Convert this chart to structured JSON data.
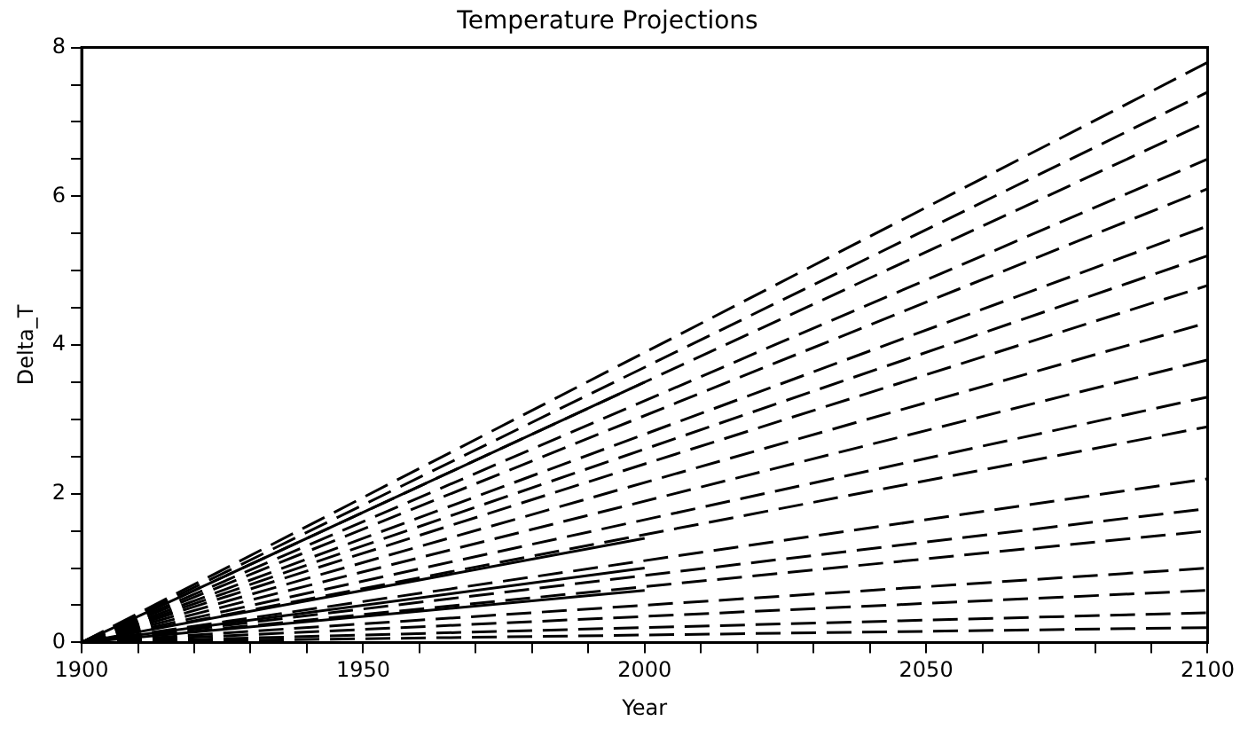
{
  "chart_data": {
    "type": "line",
    "title": "Temperature Projections",
    "xlabel": "Year",
    "ylabel": "Delta_T",
    "xlim": [
      1900,
      2100
    ],
    "ylim": [
      0,
      8
    ],
    "xticks": [
      1900,
      {
        "value": 1910,
        "label": null
      },
      {
        "value": 1920,
        "label": null
      },
      {
        "value": 1930,
        "label": null
      },
      {
        "value": 1940,
        "label": null
      },
      1950,
      {
        "value": 1960,
        "label": null
      },
      {
        "value": 1970,
        "label": null
      },
      {
        "value": 1980,
        "label": null
      },
      {
        "value": 1990,
        "label": null
      },
      2000,
      {
        "value": 2010,
        "label": null
      },
      {
        "value": 2020,
        "label": null
      },
      {
        "value": 2030,
        "label": null
      },
      {
        "value": 2040,
        "label": null
      },
      2050,
      {
        "value": 2060,
        "label": null
      },
      {
        "value": 2070,
        "label": null
      },
      {
        "value": 2080,
        "label": null
      },
      {
        "value": 2090,
        "label": null
      },
      2100
    ],
    "yticks": [
      0,
      {
        "value": 0.5,
        "label": null
      },
      {
        "value": 1,
        "label": null
      },
      {
        "value": 1.5,
        "label": null
      },
      2,
      {
        "value": 2.5,
        "label": null
      },
      {
        "value": 3,
        "label": null
      },
      {
        "value": 3.5,
        "label": null
      },
      4,
      {
        "value": 4.5,
        "label": null
      },
      {
        "value": 5,
        "label": null
      },
      {
        "value": 5.5,
        "label": null
      },
      6,
      {
        "value": 6.5,
        "label": null
      },
      {
        "value": 7,
        "label": null
      },
      {
        "value": 7.5,
        "label": null
      },
      8
    ],
    "grid": false,
    "legend": false,
    "marker": "none",
    "series": [
      {
        "color": "#000000",
        "x": [
          1900,
          2100
        ],
        "values": [
          0,
          7.8
        ],
        "line_style": "dashed"
      },
      {
        "color": "#000000",
        "x": [
          1900,
          2100
        ],
        "values": [
          0,
          7.4
        ],
        "line_style": "dashed"
      },
      {
        "color": "#000000",
        "x": [
          1900,
          2100
        ],
        "values": [
          0,
          7.0
        ],
        "line_style": "dashed"
      },
      {
        "color": "#000000",
        "x": [
          1900,
          2100
        ],
        "values": [
          0,
          6.5
        ],
        "line_style": "dashed"
      },
      {
        "color": "#000000",
        "x": [
          1900,
          2100
        ],
        "values": [
          0,
          6.1
        ],
        "line_style": "dashed"
      },
      {
        "color": "#000000",
        "x": [
          1900,
          2100
        ],
        "values": [
          0,
          5.6
        ],
        "line_style": "dashed"
      },
      {
        "color": "#000000",
        "x": [
          1900,
          2100
        ],
        "values": [
          0,
          5.2
        ],
        "line_style": "dashed"
      },
      {
        "color": "#000000",
        "x": [
          1900,
          2100
        ],
        "values": [
          0,
          4.8
        ],
        "line_style": "dashed"
      },
      {
        "color": "#000000",
        "x": [
          1900,
          2100
        ],
        "values": [
          0,
          4.3
        ],
        "line_style": "dashed"
      },
      {
        "color": "#000000",
        "x": [
          1900,
          2100
        ],
        "values": [
          0,
          3.8
        ],
        "line_style": "dashed"
      },
      {
        "color": "#000000",
        "x": [
          1900,
          2100
        ],
        "values": [
          0,
          3.3
        ],
        "line_style": "dashed"
      },
      {
        "color": "#000000",
        "x": [
          1900,
          2100
        ],
        "values": [
          0,
          2.9
        ],
        "line_style": "dashed"
      },
      {
        "color": "#000000",
        "x": [
          1900,
          2100
        ],
        "values": [
          0,
          2.2
        ],
        "line_style": "dashed"
      },
      {
        "color": "#000000",
        "x": [
          1900,
          2100
        ],
        "values": [
          0,
          1.8
        ],
        "line_style": "dashed"
      },
      {
        "color": "#000000",
        "x": [
          1900,
          2100
        ],
        "values": [
          0,
          1.5
        ],
        "line_style": "dashed"
      },
      {
        "color": "#000000",
        "x": [
          1900,
          2100
        ],
        "values": [
          0,
          1.0
        ],
        "line_style": "dashed"
      },
      {
        "color": "#000000",
        "x": [
          1900,
          2100
        ],
        "values": [
          0,
          0.7
        ],
        "line_style": "dashed"
      },
      {
        "color": "#000000",
        "x": [
          1900,
          2100
        ],
        "values": [
          0,
          0.4
        ],
        "line_style": "dashed"
      },
      {
        "color": "#000000",
        "x": [
          1900,
          2100
        ],
        "values": [
          0,
          0.2
        ],
        "line_style": "dashed"
      },
      {
        "color": "#000000",
        "x": [
          1900,
          2000
        ],
        "values": [
          0,
          3.5
        ],
        "line_style": "solid"
      },
      {
        "color": "#000000",
        "x": [
          1900,
          2000
        ],
        "values": [
          0,
          1.4
        ],
        "line_style": "solid"
      },
      {
        "color": "#000000",
        "x": [
          1900,
          2000
        ],
        "values": [
          0,
          1.0
        ],
        "line_style": "solid"
      },
      {
        "color": "#000000",
        "x": [
          1900,
          2000
        ],
        "values": [
          0,
          0.7
        ],
        "line_style": "solid"
      }
    ]
  }
}
